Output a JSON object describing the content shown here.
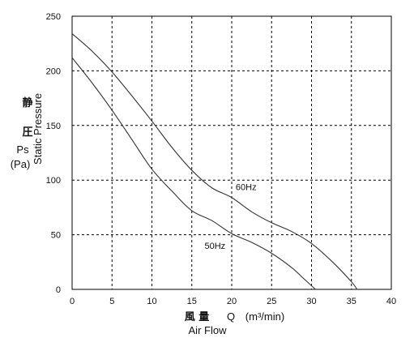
{
  "chart_data": {
    "type": "line",
    "title": "",
    "xlabel": {
      "cjk": "風 量",
      "symbol": "Q",
      "unit": "(m³/min)",
      "english": "Air Flow"
    },
    "ylabel": {
      "cjk_top": "静",
      "cjk_bottom": "圧",
      "symbol": "Ps",
      "unit": "(Pa)",
      "english": "Static Pressure"
    },
    "xlim": [
      0,
      40
    ],
    "ylim": [
      0,
      250
    ],
    "xticks": [
      "0",
      "5",
      "10",
      "15",
      "20",
      "25",
      "30",
      "35",
      "40"
    ],
    "yticks": [
      "0",
      "50",
      "100",
      "150",
      "200",
      "250"
    ],
    "grid": true,
    "colors": {
      "line": "#333333",
      "grid": "#000000",
      "frame": "#000000"
    },
    "series": [
      {
        "name": "60Hz",
        "label_at": [
          20.5,
          91
        ],
        "x": [
          0,
          2.5,
          5,
          7.5,
          10,
          12.5,
          15,
          17.5,
          20,
          22.5,
          25,
          27.5,
          30,
          32.5,
          35,
          35.7
        ],
        "y": [
          234,
          218,
          199,
          177,
          154,
          130,
          109,
          93,
          84,
          71,
          61,
          53,
          42,
          26,
          7,
          0
        ]
      },
      {
        "name": "50Hz",
        "label_at": [
          16.6,
          37
        ],
        "x": [
          0,
          2.5,
          5,
          7.5,
          10,
          12.5,
          15,
          17.5,
          20,
          22.5,
          25,
          27.5,
          29,
          30.5
        ],
        "y": [
          212,
          189,
          164,
          137,
          110,
          90,
          72,
          63,
          51,
          43,
          33,
          20,
          10,
          0
        ]
      }
    ]
  }
}
